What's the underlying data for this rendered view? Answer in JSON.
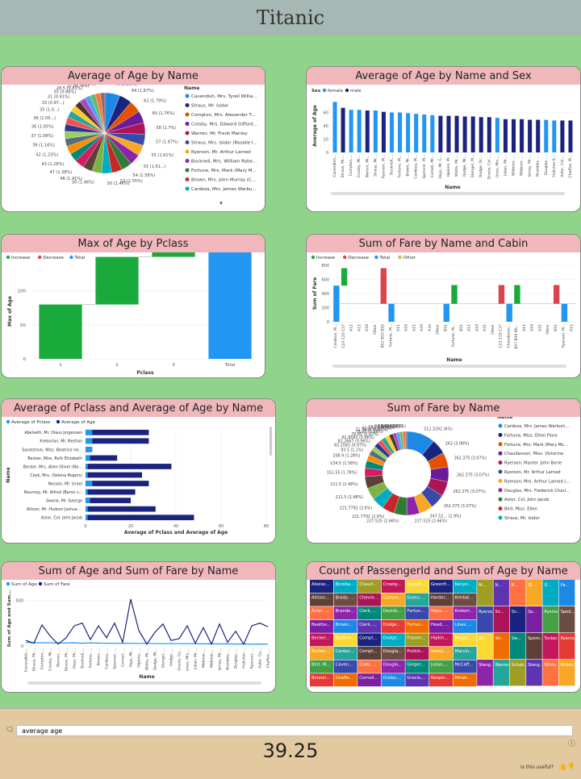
{
  "page": {
    "title": "Titanic"
  },
  "qa": {
    "query": "average age",
    "answer": "39.25",
    "useful_label": "Is this useful?",
    "chat_icon": "chat-icon",
    "info_icon": "info-icon"
  },
  "cards": {
    "pie": {
      "title": "Average of Age by Name"
    },
    "bars_sex": {
      "title": "Average of Age by Name and Sex"
    },
    "waterfall_pclass": {
      "title": "Max of Age by Pclass"
    },
    "waterfall_fare": {
      "title": "Sum of Fare by Name and Cabin"
    },
    "hbar": {
      "title": "Average of Pclass and Average of Age by Name"
    },
    "donut": {
      "title": "Sum of Fare by Name"
    },
    "line": {
      "title": "Sum of Age and Sum of Fare by Name"
    },
    "treemap": {
      "title": "Count of PassengerId and Sum of Age by Name"
    }
  },
  "chart_data": [
    {
      "id": "pie",
      "type": "pie",
      "title": "Average of Age by Name",
      "legend_title": "Name",
      "legend": [
        "Cavendish, Mrs. Tyrell Willia...",
        "Straus, Mr. Isidor",
        "Compton, Mrs. Alexander T...",
        "Crosby, Mrs. Edward Gifford...",
        "Warren, Mr. Frank Manley",
        "Straus, Mrs. Isidor (Rosalie I...",
        "Ryerson, Mr. Arthur Larned",
        "Bucknell, Mrs. William Robe...",
        "Fortune, Mrs. Mark (Mary M...",
        "Brown, Mrs. John Murray (C...",
        "Cardeza, Mrs. James Warbu..."
      ],
      "labels": [
        "76 (2.23%)",
        "64 (1.87%)",
        "61 (1.79%)",
        "60 (1.76%)",
        "58 (1.7%)",
        "57 (1.67%)",
        "55 (1.61%)",
        "55 (1.61...)",
        "54 (1.58%)",
        "53 (1.55%)",
        "50 (1.46%)",
        "50 (1.46%)",
        "48 (1.41%)",
        "47 (1.38%)",
        "43 (1.26%)",
        "42 (1.23%)",
        "39 (1.14%)",
        "37 (1.08%)",
        "36 (1.05%)",
        "36 (1.05...)",
        "35 (1.0...)",
        "33 (0.97...)",
        "31 (0.91%)",
        "30 (0.88%)",
        "28.5 (0.83%)",
        "27 (0.79%)",
        "25 (0.73%)",
        "23 (0.67%)"
      ],
      "values": [
        76,
        64,
        61,
        60,
        58,
        57,
        55,
        55,
        54,
        53,
        50,
        50,
        48,
        47,
        43,
        42,
        39,
        37,
        36,
        36,
        35,
        33,
        31,
        30,
        28.5,
        27,
        25,
        23
      ]
    },
    {
      "id": "bars_sex",
      "type": "bar",
      "title": "Average of Age by Name and Sex",
      "legend_title": "Sex",
      "series": [
        {
          "name": "female",
          "color": "#2196f3"
        },
        {
          "name": "male",
          "color": "#1a237e"
        }
      ],
      "xlabel": "Name",
      "ylabel": "Average of Age",
      "ylim": [
        0,
        80
      ],
      "yticks": [
        0,
        20,
        40,
        60
      ],
      "categories": [
        "Cavendish...",
        "Straus, Mr....",
        "Compton,...",
        "Crosby, Mr...",
        "Warren, Mr...",
        "Straus, Mr...",
        "Ryerson, M...",
        "Bucknell,...",
        "Fortune, M...",
        "Brown, Mr...",
        "Cardeza, M...",
        "Spencer, M...",
        "Cornell, Mr...",
        "Hays, Mr. C...",
        "Hipkins, M...",
        "White, Mr....",
        "Dodge, Mr...",
        "Stengel, M...",
        "Dodge, Dr....",
        "Gracie, Col....",
        "Lines, Mrs....",
        "Julian, Mr....",
        "Widener, ...",
        "Widener, ...",
        "Ismay, Mr....",
        "Brandeis, ...",
        "Douglas, ...",
        "Frolicher-S...",
        "Astor, Col....",
        "Chaffee, M..."
      ],
      "values": [
        76,
        67,
        64,
        64,
        63,
        63,
        61,
        60,
        60,
        59,
        58,
        57,
        56,
        55,
        55,
        55,
        54,
        54,
        53,
        53,
        52,
        50,
        50,
        50,
        49,
        49,
        49,
        48,
        48,
        48
      ],
      "sex": [
        "female",
        "male",
        "female",
        "female",
        "male",
        "female",
        "male",
        "female",
        "female",
        "female",
        "female",
        "female",
        "female",
        "male",
        "male",
        "male",
        "male",
        "male",
        "male",
        "male",
        "female",
        "male",
        "male",
        "male",
        "male",
        "male",
        "female",
        "female",
        "male",
        "male"
      ]
    },
    {
      "id": "waterfall_pclass",
      "type": "waterfall",
      "title": "Max of Age by Pclass",
      "legend": [
        {
          "name": "Increase",
          "color": "#1aaa3c"
        },
        {
          "name": "Decrease",
          "color": "#d9454d"
        },
        {
          "name": "Total",
          "color": "#2196f3"
        }
      ],
      "xlabel": "Pclass",
      "ylabel": "Max of Age",
      "ylim": [
        0,
        140
      ],
      "yticks": [
        0,
        50,
        100
      ],
      "categories": [
        "1",
        "2",
        "3",
        "Total"
      ],
      "values": [
        80,
        70,
        74,
        224
      ]
    },
    {
      "id": "waterfall_fare",
      "type": "waterfall",
      "title": "Sum of Fare by Name and Cabin",
      "legend": [
        {
          "name": "Increase",
          "color": "#1aaa3c"
        },
        {
          "name": "Decrease",
          "color": "#d9454d"
        },
        {
          "name": "Total",
          "color": "#2196f3"
        },
        {
          "name": "Other",
          "color": "#d9b44a"
        }
      ],
      "xlabel": "Name",
      "ylabel": "Sum of Fare",
      "ylim": [
        0,
        800
      ],
      "yticks": [
        0,
        200,
        400,
        600,
        800
      ],
      "categories": [
        "Cardeza, M...",
        "C23 C25 C27",
        "A11",
        "A11",
        "A18",
        "Other",
        "B51 B53 B55",
        "Fortune, M...",
        "A11",
        "A18",
        "A21",
        "A29",
        "A34",
        "Other",
        "B51",
        "Fortune, M...",
        "B51",
        "A11",
        "A18",
        "A21",
        "Other",
        "C23 C25 C27",
        "Chaudanso...",
        "B57 B59 B6...",
        "A11",
        "A18",
        "A21",
        "Other",
        "B51",
        "Ryerson, M...",
        "A11"
      ]
    },
    {
      "id": "hbar",
      "type": "bar",
      "orientation": "horizontal",
      "title": "Average of Pclass and Average of Age by Name",
      "series": [
        {
          "name": "Average of Pclass",
          "color": "#2196f3",
          "values": [
            3,
            3,
            3,
            2,
            1,
            1,
            3,
            1,
            2,
            1,
            1
          ]
        },
        {
          "name": "Average of Age",
          "color": "#1a237e",
          "values": [
            28,
            28,
            2,
            14,
            38,
            25,
            28,
            22,
            20,
            31,
            48
          ]
        }
      ],
      "categories": [
        "Abelseth, Mr. Olaus Jorgensen",
        "Krekorian, Mr. Neshan",
        "Sandstrom, Miss. Beatrice Ire...",
        "Becker, Miss. Ruth Elizabeth",
        "Becker, Mrs. Allen Oliver (Ne...",
        "Cook, Mrs. (Selena Rogers)",
        "Nesson, Mr. Israel",
        "Nourney, Mr. Alfred (Baron v...",
        "Swane, Mr. George",
        "Allison, Mr. Hudson Joshua ...",
        "Astor, Col. John Jacob"
      ],
      "xlabel": "Average of Pclass and Average of Age",
      "ylabel": "Name",
      "xlim": [
        0,
        80
      ],
      "xticks": [
        0,
        20,
        40,
        60,
        80
      ]
    },
    {
      "id": "donut",
      "type": "pie",
      "title": "Sum of Fare by Name",
      "legend_title": "Name",
      "legend": [
        "Cardeza, Mrs. James Warburt...",
        "Fortune, Miss. Ethel Flora",
        "Fortune, Mrs. Mark (Mary Mc...",
        "Chaudanson, Miss. Victorine",
        "Ryerson, Master. John Borie",
        "Ryerson, Mr. Arthur Larned",
        "Ryerson, Mrs. Arthur Larned (...",
        "Douglas, Mrs. Frederick Charl...",
        "Astor, Col. John Jacob",
        "Bird, Miss. Ellen",
        "Straus, Mr. Isidor"
      ],
      "labels": [
        "512.3292 (6%)",
        "263 (3.08%)",
        "262.375 (3.07%)",
        "262.375 (3.07%)",
        "262.375 (3.07%)",
        "262.375 (3.07%)",
        "247.52... (2.9%)",
        "227.525 (2.66%)",
        "227.525 (2.66%)",
        "221.7792 (2.6%)",
        "221.7792 (2.6%)",
        "211.5 (2.48%)",
        "211.5 (2.48%)",
        "151.55 (1.78%)",
        "134.5 (1.58%)",
        "108.9 (1.28%)",
        "93.5 (1.1%)",
        "83.1583 (0.97%)",
        "82.2667 (0.96%)",
        "81.8583 (0.96%)",
        "78.85 (0.92%)",
        "75.25 (0.88%)",
        "71.2833 (0.84%)",
        "61.175 (0.72%)",
        "55.77 (0.65%)",
        "53.1 (0.62%)",
        "50 (0.59%)",
        "26.55 (0.31%)"
      ],
      "values": [
        512.3292,
        263,
        262.375,
        262.375,
        262.375,
        262.375,
        247.52,
        227.525,
        227.525,
        221.7792,
        221.7792,
        211.5,
        211.5,
        151.55,
        134.5,
        108.9,
        93.5,
        83.1583,
        82.2667,
        81.8583,
        78.85,
        75.25,
        71.2833,
        61.175,
        55.77,
        53.1,
        50,
        26.55
      ]
    },
    {
      "id": "line",
      "type": "line",
      "title": "Sum of Age and Sum of Fare by Name",
      "series": [
        {
          "name": "Sum of Age",
          "color": "#2196f3",
          "values": [
            38,
            35,
            36,
            34,
            33,
            32,
            34,
            30,
            33,
            31,
            30,
            28,
            30,
            29,
            27,
            28,
            26,
            25,
            27,
            26,
            25,
            24,
            23,
            24,
            22,
            23,
            21,
            22,
            20,
            21,
            20
          ]
        },
        {
          "name": "Sum of Fare",
          "color": "#1a237e",
          "values": [
            60,
            30,
            230,
            110,
            20,
            90,
            220,
            250,
            70,
            220,
            90,
            250,
            40,
            512,
            170,
            20,
            150,
            240,
            60,
            80,
            220,
            30,
            200,
            20,
            240,
            40,
            160,
            20,
            220,
            250,
            210
          ]
        }
      ],
      "categories": [
        "Cavendish,...",
        "Straus, Mr....",
        "Compton,...",
        "Crosby, Mr...",
        "Warren, ...",
        "Straus, Mr....",
        "Hays, Mr....",
        "Bucknell,...",
        "Fortune, ...",
        "Brown, ...",
        "Cardeza, ...",
        "Spencer, ...",
        "Cornell, ...",
        "Hays, Mr...",
        "Hipkins, ...",
        "White, Mr....",
        "Dodge, Mr...",
        "Stengel, ...",
        "Dodge, ...",
        "Gracie, Co...",
        "Lines, Mrs....",
        "Julian, Mr....",
        "Widener,...",
        "Widener,...",
        "Ismay, Mr....",
        "Brandeis, ...",
        "Douglas, ...",
        "Frolicher-...",
        "Ryerson, ...",
        "Astor, Co...",
        "Chaffee, ..."
      ],
      "xlabel": "Name",
      "ylabel": "Sum of Age and Sum...",
      "ylim": [
        0,
        600
      ],
      "yticks": [
        0,
        500
      ]
    },
    {
      "id": "treemap",
      "type": "treemap",
      "title": "Count of PassengerId and Sum of Age by Name",
      "columns": [
        [
          "Abelse...",
          "Allison...",
          "Astor, ...",
          "Beattie...",
          "Becker...",
          "Becker...",
          "Bird, M...",
          "Bonnel..."
        ],
        [
          "Boreba...",
          "Brady, ...",
          "Brande...",
          "Brown...",
          "Buckne...",
          "Cardez...",
          "Caven...",
          "Chaffe..."
        ],
        [
          "Chaud...",
          "Chevre...",
          "Clark, ...",
          "Clark, ...",
          "Compt...",
          "Compt...",
          "Cook, ...",
          "Cornell..."
        ],
        [
          "Crosby...",
          "Cummi...",
          "Davids...",
          "Dodge...",
          "Dodge...",
          "Dougla...",
          "Dougla...",
          "Dulles,..."
        ],
        [
          "Earnsh...",
          "Evans, ...",
          "Fortun...",
          "Fortun...",
          "Frauen...",
          "Frolich...",
          "Geiger...",
          "Gracie,..."
        ],
        [
          "Greenfi...",
          "Harder...",
          "Hays, ...",
          "Head, ...",
          "Hipkin...",
          "Ismay, ...",
          "Julian,...",
          "Keepin..."
        ],
        [
          "Kenyo...",
          "Kimbal...",
          "Krekori...",
          "Lines, ...",
          "Maguir...",
          "Marvin...",
          "McCaff...",
          "Minah..."
        ]
      ],
      "right_block": [
        "M...",
        "N...",
        "N...",
        "Ol...",
        "O...",
        "Pa...",
        "Ryerso...",
        "Sn...",
        "Sn...",
        "Sp...",
        "Ryerso...",
        "Sped...",
        "Str...",
        "Str...",
        "Sw...",
        "Spenc...",
        "Tucker...",
        "Ryerso...",
        "Steng...",
        "Warren...",
        "Schab...",
        "Steng...",
        "White, ...",
        "Widen..."
      ]
    }
  ]
}
